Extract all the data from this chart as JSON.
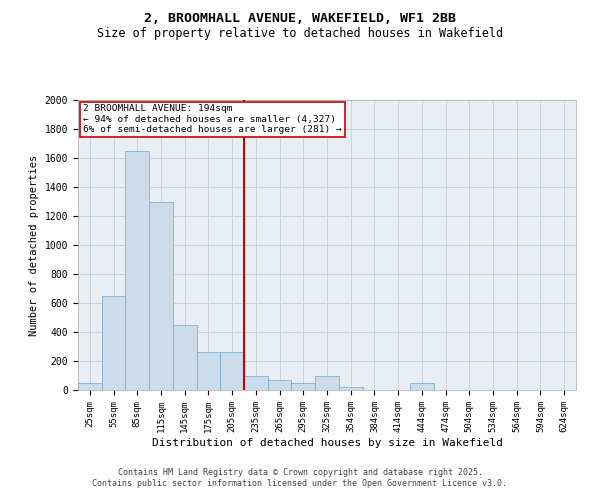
{
  "title_line1": "2, BROOMHALL AVENUE, WAKEFIELD, WF1 2BB",
  "title_line2": "Size of property relative to detached houses in Wakefield",
  "xlabel": "Distribution of detached houses by size in Wakefield",
  "ylabel": "Number of detached properties",
  "categories": [
    "25sqm",
    "55sqm",
    "85sqm",
    "115sqm",
    "145sqm",
    "175sqm",
    "205sqm",
    "235sqm",
    "265sqm",
    "295sqm",
    "325sqm",
    "354sqm",
    "384sqm",
    "414sqm",
    "444sqm",
    "474sqm",
    "504sqm",
    "534sqm",
    "564sqm",
    "594sqm",
    "624sqm"
  ],
  "values": [
    50,
    650,
    1650,
    1300,
    450,
    265,
    265,
    100,
    70,
    50,
    95,
    20,
    2,
    2,
    45,
    2,
    2,
    2,
    2,
    2,
    2
  ],
  "bar_color": "#ccdcea",
  "bar_edge_color": "#6aaad4",
  "grid_color": "#c8d4e0",
  "background_color": "#e8eef4",
  "vline_x_index": 6.5,
  "vline_color": "#cc0000",
  "annotation_text": "2 BROOMHALL AVENUE: 194sqm\n← 94% of detached houses are smaller (4,327)\n6% of semi-detached houses are larger (281) →",
  "annotation_box_color": "#cc0000",
  "ylim": [
    0,
    2000
  ],
  "yticks": [
    0,
    200,
    400,
    600,
    800,
    1000,
    1200,
    1400,
    1600,
    1800,
    2000
  ],
  "footer_line1": "Contains HM Land Registry data © Crown copyright and database right 2025.",
  "footer_line2": "Contains public sector information licensed under the Open Government Licence v3.0."
}
